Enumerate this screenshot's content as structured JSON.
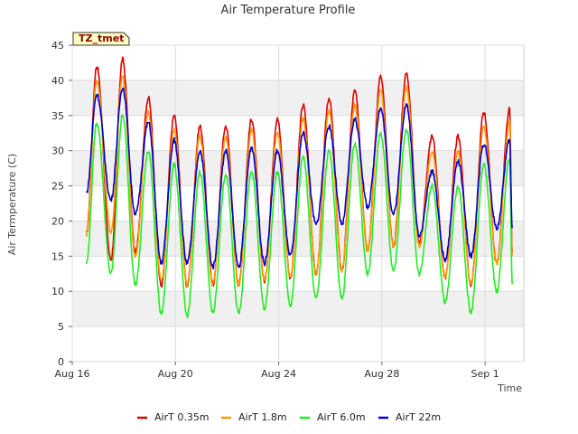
{
  "chart_data": {
    "type": "line",
    "title": "Air Temperature Profile",
    "xlabel": "Time",
    "ylabel": "Air Termperature (C)",
    "badge": "TZ_tmet",
    "xlim": [
      0,
      17.5
    ],
    "ylim": [
      0,
      45
    ],
    "yticks": [
      0,
      5,
      10,
      15,
      20,
      25,
      30,
      35,
      40,
      45
    ],
    "xticks": [
      {
        "day": 0,
        "label": "Aug 16"
      },
      {
        "day": 4,
        "label": "Aug 20"
      },
      {
        "day": 8,
        "label": "Aug 24"
      },
      {
        "day": 12,
        "label": "Aug 28"
      },
      {
        "day": 16,
        "label": "Sep 1"
      }
    ],
    "grid": true,
    "legend_position": "bottom",
    "x_unit": "days since Aug 16",
    "series": [
      {
        "name": "AirT 0.35m",
        "color": "#dd0000",
        "first": [
          0.55,
          18.2
        ],
        "last": [
          17.05,
          15.5
        ],
        "mins": [
          [
            1.5,
            14.5
          ],
          [
            2.45,
            15.5
          ],
          [
            3.45,
            10.8
          ],
          [
            4.45,
            10.8
          ],
          [
            5.45,
            11.0
          ],
          [
            6.45,
            11.0
          ],
          [
            7.45,
            11.5
          ],
          [
            8.45,
            12.0
          ],
          [
            9.45,
            12.5
          ],
          [
            10.45,
            13.0
          ],
          [
            11.45,
            16.0
          ],
          [
            12.45,
            16.5
          ],
          [
            13.45,
            17.0
          ],
          [
            14.45,
            12.0
          ],
          [
            15.45,
            11.0
          ],
          [
            16.45,
            14.0
          ]
        ],
        "maxs": [
          [
            0.95,
            42.0
          ],
          [
            1.95,
            43.0
          ],
          [
            2.95,
            37.5
          ],
          [
            3.95,
            35.0
          ],
          [
            4.95,
            33.5
          ],
          [
            5.95,
            33.5
          ],
          [
            6.95,
            34.5
          ],
          [
            7.95,
            34.5
          ],
          [
            8.95,
            36.5
          ],
          [
            9.95,
            37.5
          ],
          [
            10.95,
            38.5
          ],
          [
            11.95,
            40.5
          ],
          [
            12.95,
            41.0
          ],
          [
            13.95,
            32.0
          ],
          [
            14.95,
            32.0
          ],
          [
            15.95,
            35.5
          ],
          [
            16.95,
            36.0
          ]
        ]
      },
      {
        "name": "AirT 1.8m",
        "color": "#ff9900",
        "first": [
          0.55,
          18.0
        ],
        "last": [
          17.05,
          15.0
        ],
        "mins": [
          [
            1.5,
            18.5
          ],
          [
            2.45,
            15.0
          ],
          [
            3.45,
            11.5
          ],
          [
            4.45,
            11.0
          ],
          [
            5.45,
            11.0
          ],
          [
            6.45,
            11.0
          ],
          [
            7.45,
            11.5
          ],
          [
            8.45,
            12.0
          ],
          [
            9.45,
            12.5
          ],
          [
            10.45,
            13.0
          ],
          [
            11.45,
            16.0
          ],
          [
            12.45,
            16.5
          ],
          [
            13.45,
            16.5
          ],
          [
            14.45,
            12.0
          ],
          [
            15.45,
            11.0
          ],
          [
            16.45,
            14.0
          ]
        ],
        "maxs": [
          [
            0.95,
            40.0
          ],
          [
            1.95,
            40.5
          ],
          [
            2.95,
            35.5
          ],
          [
            3.95,
            33.0
          ],
          [
            4.95,
            32.0
          ],
          [
            5.95,
            32.0
          ],
          [
            6.95,
            33.0
          ],
          [
            7.95,
            32.5
          ],
          [
            8.95,
            34.5
          ],
          [
            9.95,
            35.5
          ],
          [
            10.95,
            36.5
          ],
          [
            11.95,
            38.5
          ],
          [
            12.95,
            39.0
          ],
          [
            13.95,
            30.0
          ],
          [
            14.95,
            30.0
          ],
          [
            15.95,
            33.5
          ],
          [
            16.95,
            34.0
          ]
        ]
      },
      {
        "name": "AirT 6.0m",
        "color": "#22ee22",
        "first": [
          0.55,
          14.0
        ],
        "last": [
          17.05,
          11.0
        ],
        "mins": [
          [
            1.5,
            12.5
          ],
          [
            2.45,
            11.0
          ],
          [
            3.45,
            6.8
          ],
          [
            4.45,
            6.5
          ],
          [
            5.45,
            7.0
          ],
          [
            6.45,
            7.0
          ],
          [
            7.45,
            7.5
          ],
          [
            8.45,
            8.0
          ],
          [
            9.45,
            9.0
          ],
          [
            10.45,
            9.0
          ],
          [
            11.45,
            12.5
          ],
          [
            12.45,
            13.0
          ],
          [
            13.45,
            12.5
          ],
          [
            14.45,
            8.5
          ],
          [
            15.45,
            7.0
          ],
          [
            16.45,
            10.0
          ]
        ],
        "maxs": [
          [
            0.95,
            34.0
          ],
          [
            1.95,
            35.0
          ],
          [
            2.95,
            30.0
          ],
          [
            3.95,
            28.0
          ],
          [
            4.95,
            27.0
          ],
          [
            5.95,
            26.5
          ],
          [
            6.95,
            27.0
          ],
          [
            7.95,
            27.0
          ],
          [
            8.95,
            29.0
          ],
          [
            9.95,
            30.0
          ],
          [
            10.95,
            31.0
          ],
          [
            11.95,
            32.5
          ],
          [
            12.95,
            33.0
          ],
          [
            13.95,
            25.0
          ],
          [
            14.95,
            25.0
          ],
          [
            15.95,
            28.0
          ],
          [
            16.95,
            29.0
          ]
        ]
      },
      {
        "name": "AirT 22m",
        "color": "#0000cc",
        "first": [
          0.55,
          24.0
        ],
        "last": [
          17.05,
          19.0
        ],
        "mins": [
          [
            1.5,
            23.0
          ],
          [
            2.45,
            21.0
          ],
          [
            3.45,
            14.0
          ],
          [
            4.45,
            14.0
          ],
          [
            5.45,
            13.5
          ],
          [
            6.45,
            13.5
          ],
          [
            7.45,
            14.0
          ],
          [
            8.45,
            15.0
          ],
          [
            9.45,
            19.5
          ],
          [
            10.45,
            19.5
          ],
          [
            11.45,
            22.0
          ],
          [
            12.45,
            21.0
          ],
          [
            13.45,
            18.0
          ],
          [
            14.45,
            14.5
          ],
          [
            15.45,
            15.0
          ],
          [
            16.45,
            19.0
          ]
        ],
        "maxs": [
          [
            0.95,
            38.0
          ],
          [
            1.95,
            39.0
          ],
          [
            2.95,
            34.0
          ],
          [
            3.95,
            31.5
          ],
          [
            4.95,
            30.0
          ],
          [
            5.95,
            30.0
          ],
          [
            6.95,
            30.5
          ],
          [
            7.95,
            30.0
          ],
          [
            8.95,
            32.5
          ],
          [
            9.95,
            33.5
          ],
          [
            10.95,
            34.5
          ],
          [
            11.95,
            36.0
          ],
          [
            12.95,
            36.5
          ],
          [
            13.95,
            27.0
          ],
          [
            14.95,
            28.5
          ],
          [
            15.95,
            31.0
          ],
          [
            16.95,
            31.5
          ]
        ]
      }
    ]
  }
}
